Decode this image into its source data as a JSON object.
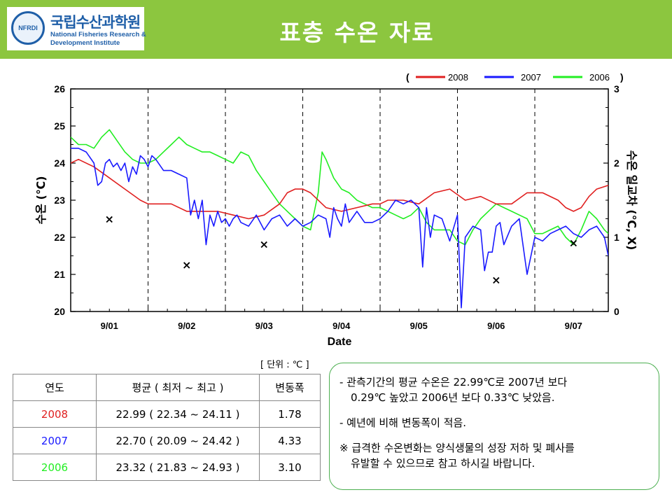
{
  "header": {
    "title": "표층 수온 자료",
    "logo_kr": "국립수산과학원",
    "logo_en_1": "National Fisheries Research &",
    "logo_en_2": "Development Institute",
    "logo_badge": "NFRDI"
  },
  "colors": {
    "header_bg": "#8cc63f",
    "s2008": "#e02020",
    "s2007": "#1a1aff",
    "s2006": "#22ee22",
    "note_border": "#4caf50"
  },
  "chart_data": {
    "type": "line",
    "xlabel": "Date",
    "ylabel_left": "수온 (℃)",
    "ylabel_right": "수온 일교차 (℃, X)",
    "ylim_left": [
      20,
      26
    ],
    "ylim_right": [
      0,
      3
    ],
    "yticks_left": [
      "20",
      "21",
      "22",
      "23",
      "24",
      "25",
      "26"
    ],
    "yticks_right": [
      "0",
      "1",
      "2",
      "3"
    ],
    "x_range": [
      1,
      7.95
    ],
    "x_ticks": [
      "9/01",
      "9/02",
      "9/03",
      "9/04",
      "9/05",
      "9/06",
      "9/07"
    ],
    "day_boundaries": [
      2,
      3,
      4,
      5,
      6,
      7
    ],
    "legend": {
      "open": "(",
      "close": ")",
      "placement": "top-right"
    },
    "series": [
      {
        "name": "2008",
        "color": "#e02020",
        "x": [
          1.0,
          1.1,
          1.3,
          1.5,
          1.7,
          1.9,
          2.0,
          2.1,
          2.3,
          2.5,
          2.7,
          2.9,
          3.1,
          3.3,
          3.5,
          3.7,
          3.8,
          3.9,
          4.0,
          4.1,
          4.3,
          4.5,
          4.7,
          4.9,
          5.0,
          5.1,
          5.3,
          5.5,
          5.7,
          5.9,
          6.1,
          6.3,
          6.5,
          6.7,
          6.9,
          7.1,
          7.3,
          7.4,
          7.5,
          7.6,
          7.7,
          7.8,
          7.95
        ],
        "y": [
          24.0,
          24.1,
          23.9,
          23.6,
          23.3,
          23.0,
          22.9,
          22.9,
          22.9,
          22.7,
          22.7,
          22.7,
          22.6,
          22.5,
          22.6,
          22.9,
          23.2,
          23.3,
          23.3,
          23.2,
          22.8,
          22.7,
          22.8,
          22.9,
          22.9,
          23.0,
          23.0,
          22.9,
          23.2,
          23.3,
          23.0,
          23.1,
          22.9,
          22.9,
          23.2,
          23.2,
          23.0,
          22.8,
          22.7,
          22.8,
          23.1,
          23.3,
          23.4
        ]
      },
      {
        "name": "2007",
        "color": "#1a1aff",
        "x": [
          1.0,
          1.1,
          1.2,
          1.3,
          1.35,
          1.4,
          1.45,
          1.5,
          1.55,
          1.6,
          1.65,
          1.7,
          1.75,
          1.8,
          1.85,
          1.9,
          1.95,
          2.0,
          2.05,
          2.1,
          2.2,
          2.3,
          2.4,
          2.5,
          2.55,
          2.6,
          2.65,
          2.7,
          2.75,
          2.8,
          2.85,
          2.9,
          2.95,
          3.0,
          3.05,
          3.1,
          3.15,
          3.2,
          3.3,
          3.4,
          3.5,
          3.6,
          3.7,
          3.8,
          3.9,
          4.0,
          4.1,
          4.2,
          4.3,
          4.35,
          4.4,
          4.45,
          4.5,
          4.55,
          4.6,
          4.7,
          4.8,
          4.9,
          5.0,
          5.1,
          5.2,
          5.3,
          5.4,
          5.5,
          5.55,
          5.6,
          5.65,
          5.7,
          5.8,
          5.9,
          6.0,
          6.05,
          6.1,
          6.2,
          6.3,
          6.35,
          6.4,
          6.45,
          6.5,
          6.55,
          6.6,
          6.7,
          6.8,
          6.9,
          7.0,
          7.1,
          7.2,
          7.3,
          7.4,
          7.5,
          7.6,
          7.7,
          7.8,
          7.9,
          7.95
        ],
        "y": [
          24.4,
          24.4,
          24.3,
          24.0,
          23.4,
          23.5,
          24.0,
          24.1,
          23.9,
          24.0,
          23.8,
          24.0,
          23.5,
          23.9,
          23.7,
          24.2,
          24.1,
          23.9,
          24.2,
          24.1,
          23.8,
          23.8,
          23.7,
          23.6,
          22.6,
          23.0,
          22.5,
          23.0,
          21.8,
          22.6,
          22.3,
          22.7,
          22.4,
          22.5,
          22.3,
          22.5,
          22.6,
          22.4,
          22.3,
          22.6,
          22.2,
          22.5,
          22.6,
          22.3,
          22.5,
          22.3,
          22.4,
          22.6,
          22.5,
          22.0,
          22.8,
          22.5,
          22.3,
          22.9,
          22.4,
          22.7,
          22.4,
          22.4,
          22.5,
          22.7,
          23.0,
          22.9,
          23.0,
          22.8,
          21.2,
          22.8,
          22.0,
          22.6,
          22.5,
          21.9,
          22.6,
          20.1,
          22.0,
          22.3,
          22.2,
          21.1,
          21.6,
          21.6,
          22.3,
          22.4,
          21.8,
          22.3,
          22.5,
          21.0,
          22.0,
          21.9,
          22.1,
          22.2,
          22.3,
          22.1,
          22.0,
          22.2,
          22.3,
          22.0,
          21.5
        ]
      },
      {
        "name": "2006",
        "color": "#22ee22",
        "x": [
          1.0,
          1.1,
          1.2,
          1.3,
          1.4,
          1.5,
          1.6,
          1.7,
          1.8,
          1.9,
          2.0,
          2.1,
          2.2,
          2.3,
          2.4,
          2.5,
          2.6,
          2.7,
          2.8,
          2.9,
          3.0,
          3.1,
          3.2,
          3.3,
          3.4,
          3.5,
          3.6,
          3.7,
          3.8,
          3.9,
          4.0,
          4.1,
          4.2,
          4.25,
          4.3,
          4.4,
          4.5,
          4.6,
          4.7,
          4.8,
          4.9,
          5.0,
          5.1,
          5.2,
          5.3,
          5.4,
          5.5,
          5.6,
          5.7,
          5.8,
          5.9,
          6.0,
          6.1,
          6.2,
          6.3,
          6.4,
          6.5,
          6.6,
          6.7,
          6.8,
          6.9,
          7.0,
          7.1,
          7.2,
          7.3,
          7.4,
          7.5,
          7.6,
          7.7,
          7.8,
          7.9,
          7.95
        ],
        "y": [
          24.7,
          24.5,
          24.5,
          24.4,
          24.7,
          24.9,
          24.6,
          24.3,
          24.1,
          24.0,
          24.0,
          24.1,
          24.3,
          24.5,
          24.7,
          24.5,
          24.4,
          24.3,
          24.3,
          24.2,
          24.1,
          24.0,
          24.3,
          24.2,
          23.8,
          23.5,
          23.2,
          22.9,
          22.7,
          22.5,
          22.3,
          22.2,
          23.2,
          24.3,
          24.1,
          23.6,
          23.3,
          23.2,
          23.0,
          22.9,
          22.8,
          22.8,
          22.7,
          22.6,
          22.5,
          22.6,
          22.8,
          22.4,
          22.2,
          22.2,
          22.2,
          21.9,
          21.8,
          22.2,
          22.5,
          22.7,
          22.9,
          22.8,
          22.7,
          22.6,
          22.5,
          22.1,
          22.1,
          22.2,
          22.3,
          22.0,
          21.8,
          22.2,
          22.7,
          22.5,
          22.2,
          22.1
        ]
      }
    ],
    "markers": {
      "name": "일교차",
      "symbol": "×",
      "x": [
        1.5,
        2.5,
        3.5,
        6.5,
        7.5
      ],
      "y": [
        1.25,
        0.63,
        0.91,
        0.43,
        0.93
      ]
    }
  },
  "unit_note": "[ 단위 : ℃ ]",
  "table": {
    "headers": [
      "연도",
      "평균 ( 최저 ~ 최고 )",
      "변동폭"
    ],
    "rows": [
      {
        "year": "2008",
        "avg": "22.99 ( 22.34 ~ 24.11 )",
        "range": "1.78",
        "color": "#e02020"
      },
      {
        "year": "2007",
        "avg": "22.70 ( 20.09 ~ 24.42 )",
        "range": "4.33",
        "color": "#1a1aff"
      },
      {
        "year": "2006",
        "avg": "23.32 ( 21.83 ~ 24.93 )",
        "range": "3.10",
        "color": "#22ee22"
      }
    ]
  },
  "notes": {
    "n1_a": "- 관측기간의 평균 수온은 22.99℃로  2007년 보다",
    "n1_b": "0.29℃ 높았고 2006년 보다 0.33℃ 낮았음.",
    "n2": "- 예년에 비해 변동폭이 적음.",
    "n3_a": "※ 급격한 수온변화는 양식생물의 성장 저하 및 폐사를",
    "n3_b": "유발할 수 있으므로 참고 하시길 바랍니다."
  }
}
